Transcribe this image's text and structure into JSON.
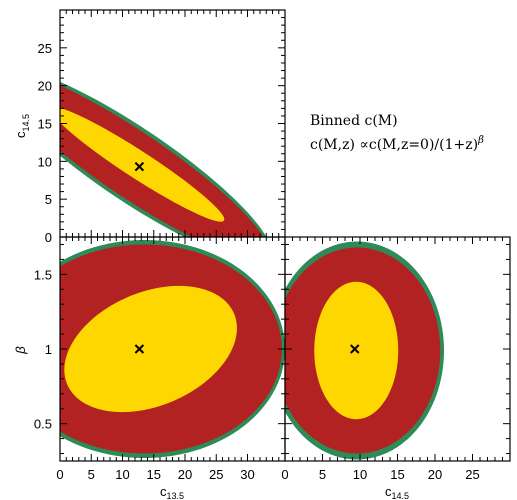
{
  "chart_data": {
    "type": "triangle-contour",
    "annotation": {
      "line1": "Binned c(M)",
      "line2_prefix": "c(M,z) ∝c(M,z=0)/(1+z)",
      "line2_sup": "β"
    },
    "parameters": {
      "c13": {
        "label_base": "c",
        "label_sub": "13.5",
        "ticks": [
          0,
          5,
          10,
          15,
          20,
          25,
          30
        ],
        "range": [
          0,
          36
        ]
      },
      "c14": {
        "label_base": "c",
        "label_sub": "14.5",
        "ticks_x": [
          0,
          5,
          10,
          15,
          20,
          25
        ],
        "ticks_y": [
          0,
          5,
          10,
          15,
          20,
          25
        ],
        "range": [
          0,
          30
        ]
      },
      "beta": {
        "label": "β",
        "ticks": [
          0.5,
          1,
          1.5
        ],
        "range": [
          0.25,
          1.75
        ]
      }
    },
    "colors": {
      "outer": "#2e8b57",
      "middle": "#b22222",
      "inner": "#ffd700"
    },
    "panels": [
      {
        "id": "c13_vs_c14",
        "x": "c13",
        "y": "c14",
        "fiducial": {
          "x": 12.7,
          "y": 9.3
        },
        "contours": [
          {
            "level": "outer",
            "center": [
              11.6,
              9.6
            ],
            "semi_axes": [
              26.5,
              4.8
            ],
            "angle_deg": -34
          },
          {
            "level": "middle",
            "center": [
              11.6,
              9.6
            ],
            "semi_axes": [
              26.0,
              4.3
            ],
            "angle_deg": -34
          },
          {
            "level": "inner",
            "center": [
              12.4,
              9.6
            ],
            "semi_axes": [
              16.5,
              1.8
            ],
            "angle_deg": -33
          }
        ]
      },
      {
        "id": "c13_vs_beta",
        "x": "c13",
        "y": "beta",
        "fiducial": {
          "x": 12.7,
          "y": 1.0
        },
        "contours": [
          {
            "level": "outer",
            "center": [
              13.5,
              1.0
            ],
            "semi_axes": [
              22.5,
              0.73
            ],
            "angle_deg": 0
          },
          {
            "level": "middle",
            "center": [
              13.5,
              1.0
            ],
            "semi_axes": [
              22.0,
              0.7
            ],
            "angle_deg": 0
          },
          {
            "level": "inner",
            "center": [
              14.5,
              1.0
            ],
            "semi_axes": [
              14.5,
              0.38
            ],
            "angle_deg": 23
          }
        ]
      },
      {
        "id": "c14_vs_beta",
        "x": "c14",
        "y": "beta",
        "fiducial": {
          "x": 9.3,
          "y": 1.0
        },
        "contours": [
          {
            "level": "outer",
            "center": [
              9.6,
              0.99
            ],
            "semi_axes": [
              11.6,
              0.73
            ],
            "angle_deg": 0
          },
          {
            "level": "middle",
            "center": [
              9.6,
              0.99
            ],
            "semi_axes": [
              11.1,
              0.69
            ],
            "angle_deg": 0
          },
          {
            "level": "inner",
            "center": [
              9.5,
              0.99
            ],
            "semi_axes": [
              5.6,
              0.46
            ],
            "angle_deg": 0
          }
        ]
      }
    ]
  }
}
